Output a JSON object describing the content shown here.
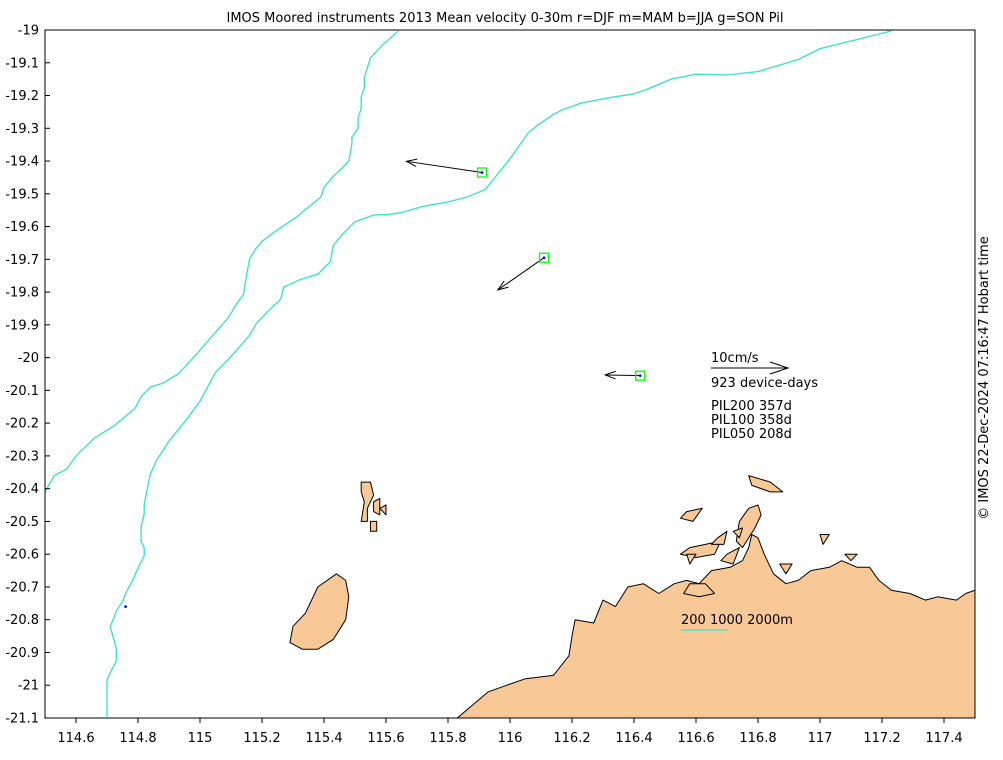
{
  "title": "IMOS Moored instruments 2013 Mean velocity 0-30m r=DJF m=MAM b=JJA g=SON Pil",
  "credit": "© IMOS 22-Dec-2024 07:16:47 Hobart time",
  "x_axis": {
    "range": [
      114.5,
      117.5
    ],
    "ticks": [
      114.6,
      114.8,
      115,
      115.2,
      115.4,
      115.6,
      115.8,
      116,
      116.2,
      116.4,
      116.6,
      116.8,
      117,
      117.2,
      117.4
    ],
    "tick_labels": [
      "114.6",
      "114.8",
      "115",
      "115.2",
      "115.4",
      "115.6",
      "115.8",
      "116",
      "116.2",
      "116.4",
      "116.6",
      "116.8",
      "117",
      "117.2",
      "117.4"
    ]
  },
  "y_axis": {
    "range": [
      -21.1,
      -19
    ],
    "ticks": [
      -19,
      -19.1,
      -19.2,
      -19.3,
      -19.4,
      -19.5,
      -19.6,
      -19.7,
      -19.8,
      -19.9,
      -20,
      -20.1,
      -20.2,
      -20.3,
      -20.4,
      -20.5,
      -20.6,
      -20.7,
      -20.8,
      -20.9,
      -21,
      -21.1
    ],
    "tick_labels": [
      "-19",
      "-19.1",
      "-19.2",
      "-19.3",
      "-19.4",
      "-19.5",
      "-19.6",
      "-19.7",
      "-19.8",
      "-19.9",
      "-20",
      "-20.1",
      "-20.2",
      "-20.3",
      "-20.4",
      "-20.5",
      "-20.6",
      "-20.7",
      "-20.8",
      "-20.9",
      "-21",
      "-21.1"
    ]
  },
  "scale": {
    "label": "10cm/s",
    "device_days": "923 device-days"
  },
  "moorings": [
    {
      "name": "PIL200",
      "days": "357d",
      "label": "PIL200 357d",
      "lon": 115.91,
      "lat": -19.435,
      "u_cm_s": -10.8,
      "v_cm_s": 1.6
    },
    {
      "name": "PIL100",
      "days": "358d",
      "label": "PIL100 358d",
      "lon": 116.11,
      "lat": -19.695,
      "u_cm_s": -6.6,
      "v_cm_s": -4.6
    },
    {
      "name": "PIL050",
      "days": "208d",
      "label": "PIL050 208d",
      "lon": 116.42,
      "lat": -20.055,
      "u_cm_s": -5.0,
      "v_cm_s": 0.1
    }
  ],
  "isobaths": {
    "label": "200 1000 2000m",
    "color": "#40e0d0",
    "depth_200": [
      [
        117.23,
        -19.003
      ],
      [
        117.0,
        -19.057
      ],
      [
        116.93,
        -19.09
      ],
      [
        116.8,
        -19.127
      ],
      [
        116.7,
        -19.137
      ],
      [
        116.6,
        -19.135
      ],
      [
        116.52,
        -19.15
      ],
      [
        116.45,
        -19.178
      ],
      [
        116.4,
        -19.195
      ],
      [
        116.33,
        -19.205
      ],
      [
        116.23,
        -19.223
      ],
      [
        116.17,
        -19.243
      ],
      [
        116.14,
        -19.258
      ],
      [
        116.09,
        -19.29
      ],
      [
        116.06,
        -19.313
      ],
      [
        116.03,
        -19.353
      ],
      [
        116.0,
        -19.393
      ],
      [
        115.96,
        -19.44
      ],
      [
        115.92,
        -19.487
      ],
      [
        115.86,
        -19.51
      ],
      [
        115.8,
        -19.525
      ],
      [
        115.72,
        -19.538
      ],
      [
        115.65,
        -19.557
      ],
      [
        115.61,
        -19.563
      ],
      [
        115.56,
        -19.565
      ],
      [
        115.5,
        -19.585
      ],
      [
        115.46,
        -19.623
      ],
      [
        115.43,
        -19.658
      ],
      [
        115.42,
        -19.708
      ],
      [
        115.38,
        -19.745
      ],
      [
        115.32,
        -19.763
      ],
      [
        115.27,
        -19.785
      ],
      [
        115.26,
        -19.822
      ],
      [
        115.22,
        -19.858
      ],
      [
        115.18,
        -19.898
      ],
      [
        115.16,
        -19.932
      ],
      [
        115.1,
        -19.997
      ],
      [
        115.05,
        -20.045
      ],
      [
        115.0,
        -20.133
      ],
      [
        114.96,
        -20.185
      ],
      [
        114.9,
        -20.255
      ],
      [
        114.86,
        -20.313
      ],
      [
        114.84,
        -20.355
      ],
      [
        114.83,
        -20.4
      ],
      [
        114.82,
        -20.448
      ],
      [
        114.82,
        -20.478
      ],
      [
        114.81,
        -20.515
      ],
      [
        114.81,
        -20.56
      ],
      [
        114.82,
        -20.58
      ],
      [
        114.82,
        -20.605
      ],
      [
        114.8,
        -20.643
      ],
      [
        114.78,
        -20.685
      ],
      [
        114.76,
        -20.72
      ],
      [
        114.75,
        -20.745
      ],
      [
        114.73,
        -20.773
      ],
      [
        114.72,
        -20.8
      ],
      [
        114.71,
        -20.82
      ],
      [
        114.72,
        -20.853
      ],
      [
        114.73,
        -20.888
      ],
      [
        114.73,
        -20.925
      ],
      [
        114.72,
        -20.945
      ],
      [
        114.71,
        -20.962
      ],
      [
        114.7,
        -20.985
      ],
      [
        114.7,
        -21.097
      ]
    ],
    "depth_1000": [
      [
        115.64,
        -19.003
      ],
      [
        115.59,
        -19.045
      ],
      [
        115.57,
        -19.065
      ],
      [
        115.55,
        -19.085
      ],
      [
        115.54,
        -19.115
      ],
      [
        115.53,
        -19.145
      ],
      [
        115.53,
        -19.175
      ],
      [
        115.52,
        -19.205
      ],
      [
        115.52,
        -19.24
      ],
      [
        115.51,
        -19.268
      ],
      [
        115.51,
        -19.3
      ],
      [
        115.49,
        -19.328
      ],
      [
        115.49,
        -19.348
      ],
      [
        115.48,
        -19.4
      ],
      [
        115.46,
        -19.42
      ],
      [
        115.43,
        -19.447
      ],
      [
        115.4,
        -19.48
      ],
      [
        115.39,
        -19.51
      ],
      [
        115.36,
        -19.533
      ],
      [
        115.31,
        -19.572
      ],
      [
        115.25,
        -19.61
      ],
      [
        115.2,
        -19.645
      ],
      [
        115.18,
        -19.668
      ],
      [
        115.16,
        -19.698
      ],
      [
        115.15,
        -19.75
      ],
      [
        115.14,
        -19.808
      ],
      [
        115.12,
        -19.833
      ],
      [
        115.09,
        -19.88
      ],
      [
        115.04,
        -19.933
      ],
      [
        114.99,
        -19.988
      ],
      [
        114.93,
        -20.05
      ],
      [
        114.88,
        -20.078
      ],
      [
        114.84,
        -20.09
      ],
      [
        114.81,
        -20.12
      ],
      [
        114.79,
        -20.155
      ],
      [
        114.75,
        -20.187
      ],
      [
        114.72,
        -20.21
      ],
      [
        114.66,
        -20.245
      ],
      [
        114.6,
        -20.3
      ],
      [
        114.57,
        -20.34
      ],
      [
        114.53,
        -20.36
      ],
      [
        114.5,
        -20.41
      ]
    ]
  },
  "colors": {
    "land": "#f8c896",
    "coastline": "#000000",
    "mooring_box": "#00ff00",
    "isobath": "#40e0d0",
    "marker": "#0000ff"
  },
  "land_polygons": [
    [
      [
        115.83,
        -21.1
      ],
      [
        115.93,
        -21.02
      ],
      [
        115.99,
        -21.0
      ],
      [
        116.05,
        -20.98
      ],
      [
        116.14,
        -20.97
      ],
      [
        116.19,
        -20.91
      ],
      [
        116.2,
        -20.85
      ],
      [
        116.21,
        -20.8
      ],
      [
        116.27,
        -20.81
      ],
      [
        116.3,
        -20.74
      ],
      [
        116.34,
        -20.76
      ],
      [
        116.38,
        -20.7
      ],
      [
        116.43,
        -20.69
      ],
      [
        116.48,
        -20.72
      ],
      [
        116.53,
        -20.69
      ],
      [
        116.57,
        -20.68
      ],
      [
        116.61,
        -20.69
      ],
      [
        116.65,
        -20.65
      ],
      [
        116.71,
        -20.64
      ],
      [
        116.75,
        -20.62
      ],
      [
        116.77,
        -20.58
      ],
      [
        116.78,
        -20.54
      ],
      [
        116.8,
        -20.55
      ],
      [
        116.82,
        -20.6
      ],
      [
        116.85,
        -20.66
      ],
      [
        116.89,
        -20.69
      ],
      [
        116.93,
        -20.68
      ],
      [
        116.97,
        -20.65
      ],
      [
        117.03,
        -20.64
      ],
      [
        117.07,
        -20.62
      ],
      [
        117.12,
        -20.64
      ],
      [
        117.16,
        -20.64
      ],
      [
        117.19,
        -20.68
      ],
      [
        117.23,
        -20.71
      ],
      [
        117.29,
        -20.72
      ],
      [
        117.34,
        -20.74
      ],
      [
        117.38,
        -20.73
      ],
      [
        117.44,
        -20.74
      ],
      [
        117.47,
        -20.72
      ],
      [
        117.5,
        -20.71
      ],
      [
        117.5,
        -21.1
      ]
    ],
    [
      [
        115.44,
        -20.66
      ],
      [
        115.47,
        -20.68
      ],
      [
        115.48,
        -20.73
      ],
      [
        115.47,
        -20.8
      ],
      [
        115.43,
        -20.86
      ],
      [
        115.38,
        -20.89
      ],
      [
        115.33,
        -20.89
      ],
      [
        115.29,
        -20.87
      ],
      [
        115.3,
        -20.82
      ],
      [
        115.34,
        -20.78
      ],
      [
        115.38,
        -20.7
      ]
    ],
    [
      [
        116.75,
        -20.58
      ],
      [
        116.79,
        -20.52
      ],
      [
        116.81,
        -20.48
      ],
      [
        116.8,
        -20.45
      ],
      [
        116.77,
        -20.46
      ],
      [
        116.74,
        -20.5
      ],
      [
        116.73,
        -20.56
      ]
    ],
    [
      [
        116.58,
        -20.58
      ],
      [
        116.63,
        -20.57
      ],
      [
        116.68,
        -20.56
      ],
      [
        116.66,
        -20.6
      ],
      [
        116.6,
        -20.61
      ],
      [
        116.55,
        -20.6
      ]
    ],
    [
      [
        116.68,
        -20.62
      ],
      [
        116.7,
        -20.6
      ],
      [
        116.74,
        -20.58
      ],
      [
        116.72,
        -20.63
      ]
    ],
    [
      [
        116.58,
        -20.69
      ],
      [
        116.63,
        -20.69
      ],
      [
        116.66,
        -20.72
      ],
      [
        116.61,
        -20.73
      ],
      [
        116.56,
        -20.72
      ]
    ],
    [
      [
        116.77,
        -20.36
      ],
      [
        116.84,
        -20.38
      ],
      [
        116.88,
        -20.41
      ],
      [
        116.84,
        -20.41
      ],
      [
        116.78,
        -20.39
      ]
    ],
    [
      [
        116.57,
        -20.47
      ],
      [
        116.62,
        -20.46
      ],
      [
        116.59,
        -20.5
      ],
      [
        116.55,
        -20.49
      ]
    ],
    [
      [
        116.67,
        -20.55
      ],
      [
        116.7,
        -20.53
      ],
      [
        116.69,
        -20.57
      ],
      [
        116.65,
        -20.57
      ]
    ],
    [
      [
        116.72,
        -20.53
      ],
      [
        116.75,
        -20.52
      ],
      [
        116.74,
        -20.55
      ]
    ],
    [
      [
        117.0,
        -20.54
      ],
      [
        117.03,
        -20.54
      ],
      [
        117.01,
        -20.57
      ]
    ],
    [
      [
        116.57,
        -20.6
      ],
      [
        116.6,
        -20.6
      ],
      [
        116.58,
        -20.63
      ]
    ],
    [
      [
        115.52,
        -20.38
      ],
      [
        115.55,
        -20.38
      ],
      [
        115.56,
        -20.42
      ],
      [
        115.54,
        -20.46
      ],
      [
        115.54,
        -20.5
      ],
      [
        115.52,
        -20.5
      ],
      [
        115.53,
        -20.44
      ],
      [
        115.52,
        -20.41
      ]
    ],
    [
      [
        115.56,
        -20.44
      ],
      [
        115.58,
        -20.43
      ],
      [
        115.58,
        -20.48
      ],
      [
        115.56,
        -20.47
      ]
    ],
    [
      [
        115.58,
        -20.46
      ],
      [
        115.6,
        -20.45
      ],
      [
        115.6,
        -20.48
      ]
    ],
    [
      [
        115.55,
        -20.5
      ],
      [
        115.57,
        -20.5
      ],
      [
        115.57,
        -20.53
      ],
      [
        115.55,
        -20.53
      ]
    ],
    [
      [
        116.87,
        -20.63
      ],
      [
        116.91,
        -20.63
      ],
      [
        116.89,
        -20.66
      ]
    ],
    [
      [
        117.08,
        -20.6
      ],
      [
        117.12,
        -20.6
      ],
      [
        117.1,
        -20.62
      ]
    ]
  ]
}
